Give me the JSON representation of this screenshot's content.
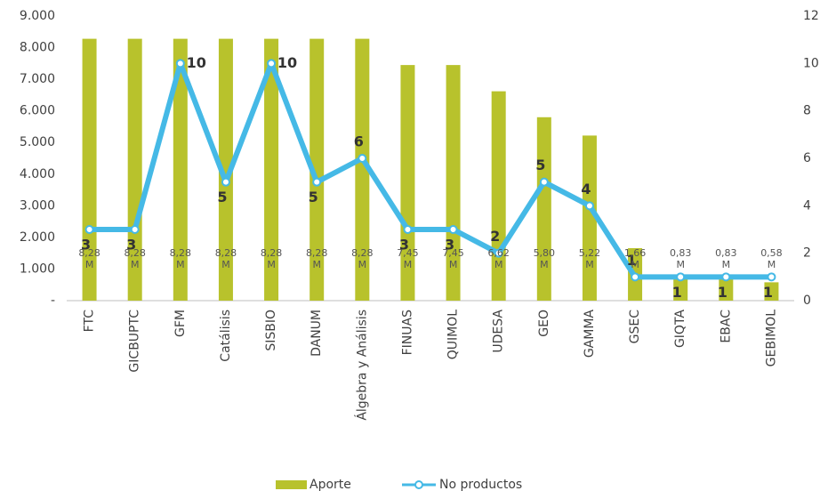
{
  "chart_data": {
    "type": "combo",
    "categories": [
      "FTC",
      "GICBUPTC",
      "GFM",
      "Catálisis",
      "SISBIO",
      "DANUM",
      "Álgebra y Análisis",
      "FINUAS",
      "QUIMOL",
      "UDESA",
      "GEO",
      "GAMMA",
      "GSEC",
      "GIQTA",
      "EBAC",
      "GEBIMOL"
    ],
    "series": [
      {
        "name": "Aporte",
        "type": "bar",
        "color": "#b8c22c",
        "values": [
          8280,
          8280,
          8280,
          8280,
          8280,
          8280,
          8280,
          7450,
          7450,
          6620,
          5800,
          5220,
          1660,
          830,
          830,
          580
        ],
        "value_labels": [
          "8,28 M",
          "8,28 M",
          "8,28 M",
          "8,28 M",
          "8,28 M",
          "8,28 M",
          "8,28 M",
          "7,45 M",
          "7,45 M",
          "6,62 M",
          "5,80 M",
          "5,22 M",
          "1,66 M",
          "0,83 M",
          "0,83 M",
          "0,58 M"
        ]
      },
      {
        "name": "No productos",
        "type": "line",
        "color": "#45b9e6",
        "axis": "y2",
        "values": [
          3,
          3,
          10,
          5,
          10,
          5,
          6,
          3,
          3,
          2,
          5,
          4,
          1,
          1,
          1,
          1
        ]
      }
    ],
    "ylim": [
      0,
      9000
    ],
    "yticks": [
      {
        "value": 0,
        "label": "-"
      },
      {
        "value": 1000,
        "label": "1.000"
      },
      {
        "value": 2000,
        "label": "2.000"
      },
      {
        "value": 3000,
        "label": "3.000"
      },
      {
        "value": 4000,
        "label": "4.000"
      },
      {
        "value": 5000,
        "label": "5.000"
      },
      {
        "value": 6000,
        "label": "6.000"
      },
      {
        "value": 7000,
        "label": "7.000"
      },
      {
        "value": 8000,
        "label": "8.000"
      },
      {
        "value": 9000,
        "label": "9.000"
      }
    ],
    "y2lim": [
      0,
      12
    ],
    "y2ticks": [
      0,
      2,
      4,
      6,
      8,
      10,
      12
    ],
    "grid": false,
    "legend": "bottom"
  }
}
